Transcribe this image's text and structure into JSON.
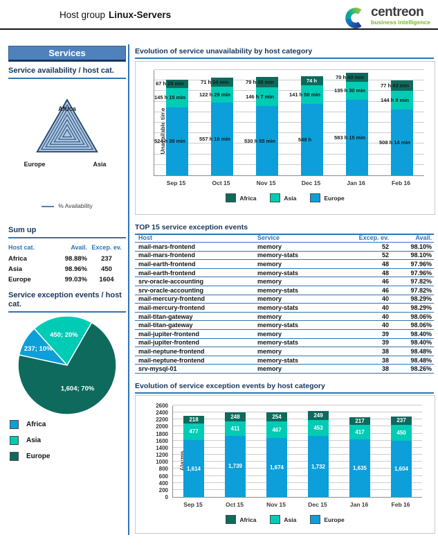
{
  "header": {
    "title_prefix": "Host group",
    "title_bold": "Linux-Servers",
    "logo_brand": "centreon",
    "logo_tagline": "business intelligence"
  },
  "colors": {
    "accent_blue": "#2e74b5",
    "heading_navy": "#17365d",
    "services_bg": "#4f81bd",
    "bar_africa": "#0e6a5c",
    "bar_asia": "#00cbb4",
    "bar_europe": "#0c9fd9",
    "pie_africa": "#0c9fd9",
    "pie_asia": "#00cbb4",
    "pie_europe": "#0e6a5c"
  },
  "sidebar": {
    "panel_title": "Services",
    "availability": {
      "heading": "Service availability / host cat.",
      "legend_label": "% Availability"
    },
    "sumup": {
      "heading": "Sum up",
      "columns": [
        "Host cat.",
        "Avail.",
        "Excep. ev."
      ],
      "rows": [
        [
          "Africa",
          "98.88%",
          "237"
        ],
        [
          "Asia",
          "98.96%",
          "450"
        ],
        [
          "Europe",
          "99.03%",
          "1604"
        ]
      ]
    },
    "exception": {
      "heading": "Service exception events / host cat.",
      "legend": [
        {
          "label": "Africa",
          "color": "#0c9fd9"
        },
        {
          "label": "Asia",
          "color": "#00cbb4"
        },
        {
          "label": "Europe",
          "color": "#0e6a5c"
        }
      ]
    }
  },
  "main": {
    "section1_heading": "Evolution of service unavailability by host category",
    "section2_heading": "TOP 15 service exception events",
    "section3_heading": "Evolution of service exception events by host category",
    "table": {
      "columns": [
        "Host",
        "Service",
        "Excep. ev.",
        "Avail."
      ],
      "rows": [
        [
          "mail-mars-frontend",
          "memory",
          "52",
          "98.10%"
        ],
        [
          "mail-mars-frontend",
          "memory-stats",
          "52",
          "98.10%"
        ],
        [
          "mail-earth-frontend",
          "memory",
          "48",
          "97.96%"
        ],
        [
          "mail-earth-frontend",
          "memory-stats",
          "48",
          "97.96%"
        ],
        [
          "srv-oracle-accounting",
          "memory",
          "46",
          "97.82%"
        ],
        [
          "srv-oracle-accounting",
          "memory-stats",
          "46",
          "97.82%"
        ],
        [
          "mail-mercury-frontend",
          "memory",
          "40",
          "98.29%"
        ],
        [
          "mail-mercury-frontend",
          "memory-stats",
          "40",
          "98.29%"
        ],
        [
          "mail-titan-gateway",
          "memory",
          "40",
          "98.06%"
        ],
        [
          "mail-titan-gateway",
          "memory-stats",
          "40",
          "98.06%"
        ],
        [
          "mail-jupiter-frontend",
          "memory",
          "39",
          "98.40%"
        ],
        [
          "mail-jupiter-frontend",
          "memory-stats",
          "39",
          "98.40%"
        ],
        [
          "mail-neptune-frontend",
          "memory",
          "38",
          "98.48%"
        ],
        [
          "mail-neptune-frontend",
          "memory-stats",
          "38",
          "98.48%"
        ],
        [
          "srv-mysql-01",
          "memory",
          "38",
          "98.26%"
        ]
      ]
    }
  },
  "chart_data": [
    {
      "id": "unavailability",
      "type": "bar",
      "stacked": true,
      "title": "Evolution of service unavailability by host category",
      "ylabel": "Unavailable time",
      "unit": "hours",
      "categories": [
        "Sep 15",
        "Oct 15",
        "Nov 15",
        "Dec 15",
        "Jan 16",
        "Feb 16"
      ],
      "ymax": 810,
      "gridlines": 10,
      "series": [
        {
          "name": "Europe",
          "color": "#0c9fd9",
          "label_color": "#1a1a1a",
          "values": [
            524.65,
            557.17,
            530.92,
            549,
            583.25,
            508.23
          ],
          "labels": [
            "524 h 39 min",
            "557 h 10 min",
            "530 h 55 min",
            "549 h",
            "583 h 15 min",
            "508 h 14 min"
          ]
        },
        {
          "name": "Asia",
          "color": "#00cbb4",
          "label_color": "#1a1a1a",
          "values": [
            145.25,
            122.48,
            146.12,
            141.83,
            135.5,
            144.13
          ],
          "labels": [
            "145 h 15 min",
            "122 h 29 min",
            "146 h 7 min",
            "141 h 50 min",
            "135 h 30 min",
            "144 h 8 min"
          ]
        },
        {
          "name": "Africa",
          "color": "#0e6a5c",
          "label_color": "#1a1a1a",
          "label_colors": [
            "#1a1a1a",
            "#1a1a1a",
            "#1a1a1a",
            "#ffffff",
            "#1a1a1a",
            "#1a1a1a"
          ],
          "values": [
            67.42,
            71.57,
            79.75,
            74,
            70.67,
            77.72
          ],
          "labels": [
            "67 h 25 min",
            "71 h 34 min",
            "79 h 45 min",
            "74 h",
            "70 h 40 min",
            "77 h 43 min"
          ]
        }
      ],
      "legend": [
        {
          "label": "Africa",
          "color": "#0e6a5c"
        },
        {
          "label": "Asia",
          "color": "#00cbb4"
        },
        {
          "label": "Europe",
          "color": "#0c9fd9"
        }
      ]
    },
    {
      "id": "exceptions",
      "type": "bar",
      "stacked": true,
      "title": "Evolution of service exception events by host category",
      "ylabel": "Alarms",
      "categories": [
        "Sep 15",
        "Oct 15",
        "Nov 15",
        "Dec 15",
        "Jan 16",
        "Feb 16"
      ],
      "ylim": [
        0,
        2600
      ],
      "ytick_step": 200,
      "ymax": 2600,
      "gridlines": 13,
      "series": [
        {
          "name": "Europe",
          "color": "#0c9fd9",
          "label_color": "#ffffff",
          "values": [
            1614,
            1739,
            1674,
            1732,
            1635,
            1604
          ],
          "labels": [
            "1,614",
            "1,739",
            "1,674",
            "1,732",
            "1,635",
            "1,604"
          ]
        },
        {
          "name": "Asia",
          "color": "#00cbb4",
          "label_color": "#ffffff",
          "values": [
            477,
            411,
            467,
            453,
            417,
            450
          ],
          "labels": [
            "477",
            "411",
            "467",
            "453",
            "417",
            "450"
          ]
        },
        {
          "name": "Africa",
          "color": "#0e6a5c",
          "label_color": "#ffffff",
          "values": [
            218,
            248,
            254,
            249,
            217,
            237
          ],
          "labels": [
            "218",
            "248",
            "254",
            "249",
            "217",
            "237"
          ]
        }
      ],
      "legend": [
        {
          "label": "Africa",
          "color": "#0e6a5c"
        },
        {
          "label": "Asia",
          "color": "#00cbb4"
        },
        {
          "label": "Europe",
          "color": "#0c9fd9"
        }
      ]
    },
    {
      "id": "exception_pie",
      "type": "pie",
      "title": "Service exception events / host cat.",
      "start_deg": 60,
      "slices": [
        {
          "name": "Asia",
          "value": 450,
          "pct": 20,
          "label": "450; 20%",
          "color": "#00cbb4"
        },
        {
          "name": "Africa",
          "value": 237,
          "pct": 10,
          "label": "237; 10%",
          "color": "#0c9fd9"
        },
        {
          "name": "Europe",
          "value": 1604,
          "pct": 70,
          "label": "1,604; 70%",
          "color": "#0e6a5c"
        }
      ],
      "label_radius": [
        0.62,
        0.68,
        0.52
      ]
    },
    {
      "id": "availability_radar",
      "type": "radar",
      "axes": [
        "Africa",
        "Asia",
        "Europe"
      ],
      "rings": 7,
      "fill": "#a9c6e3",
      "stroke": "#24436b",
      "series": [
        {
          "name": "% Availability",
          "values": [
            98.88,
            98.96,
            99.03
          ]
        }
      ]
    }
  ]
}
